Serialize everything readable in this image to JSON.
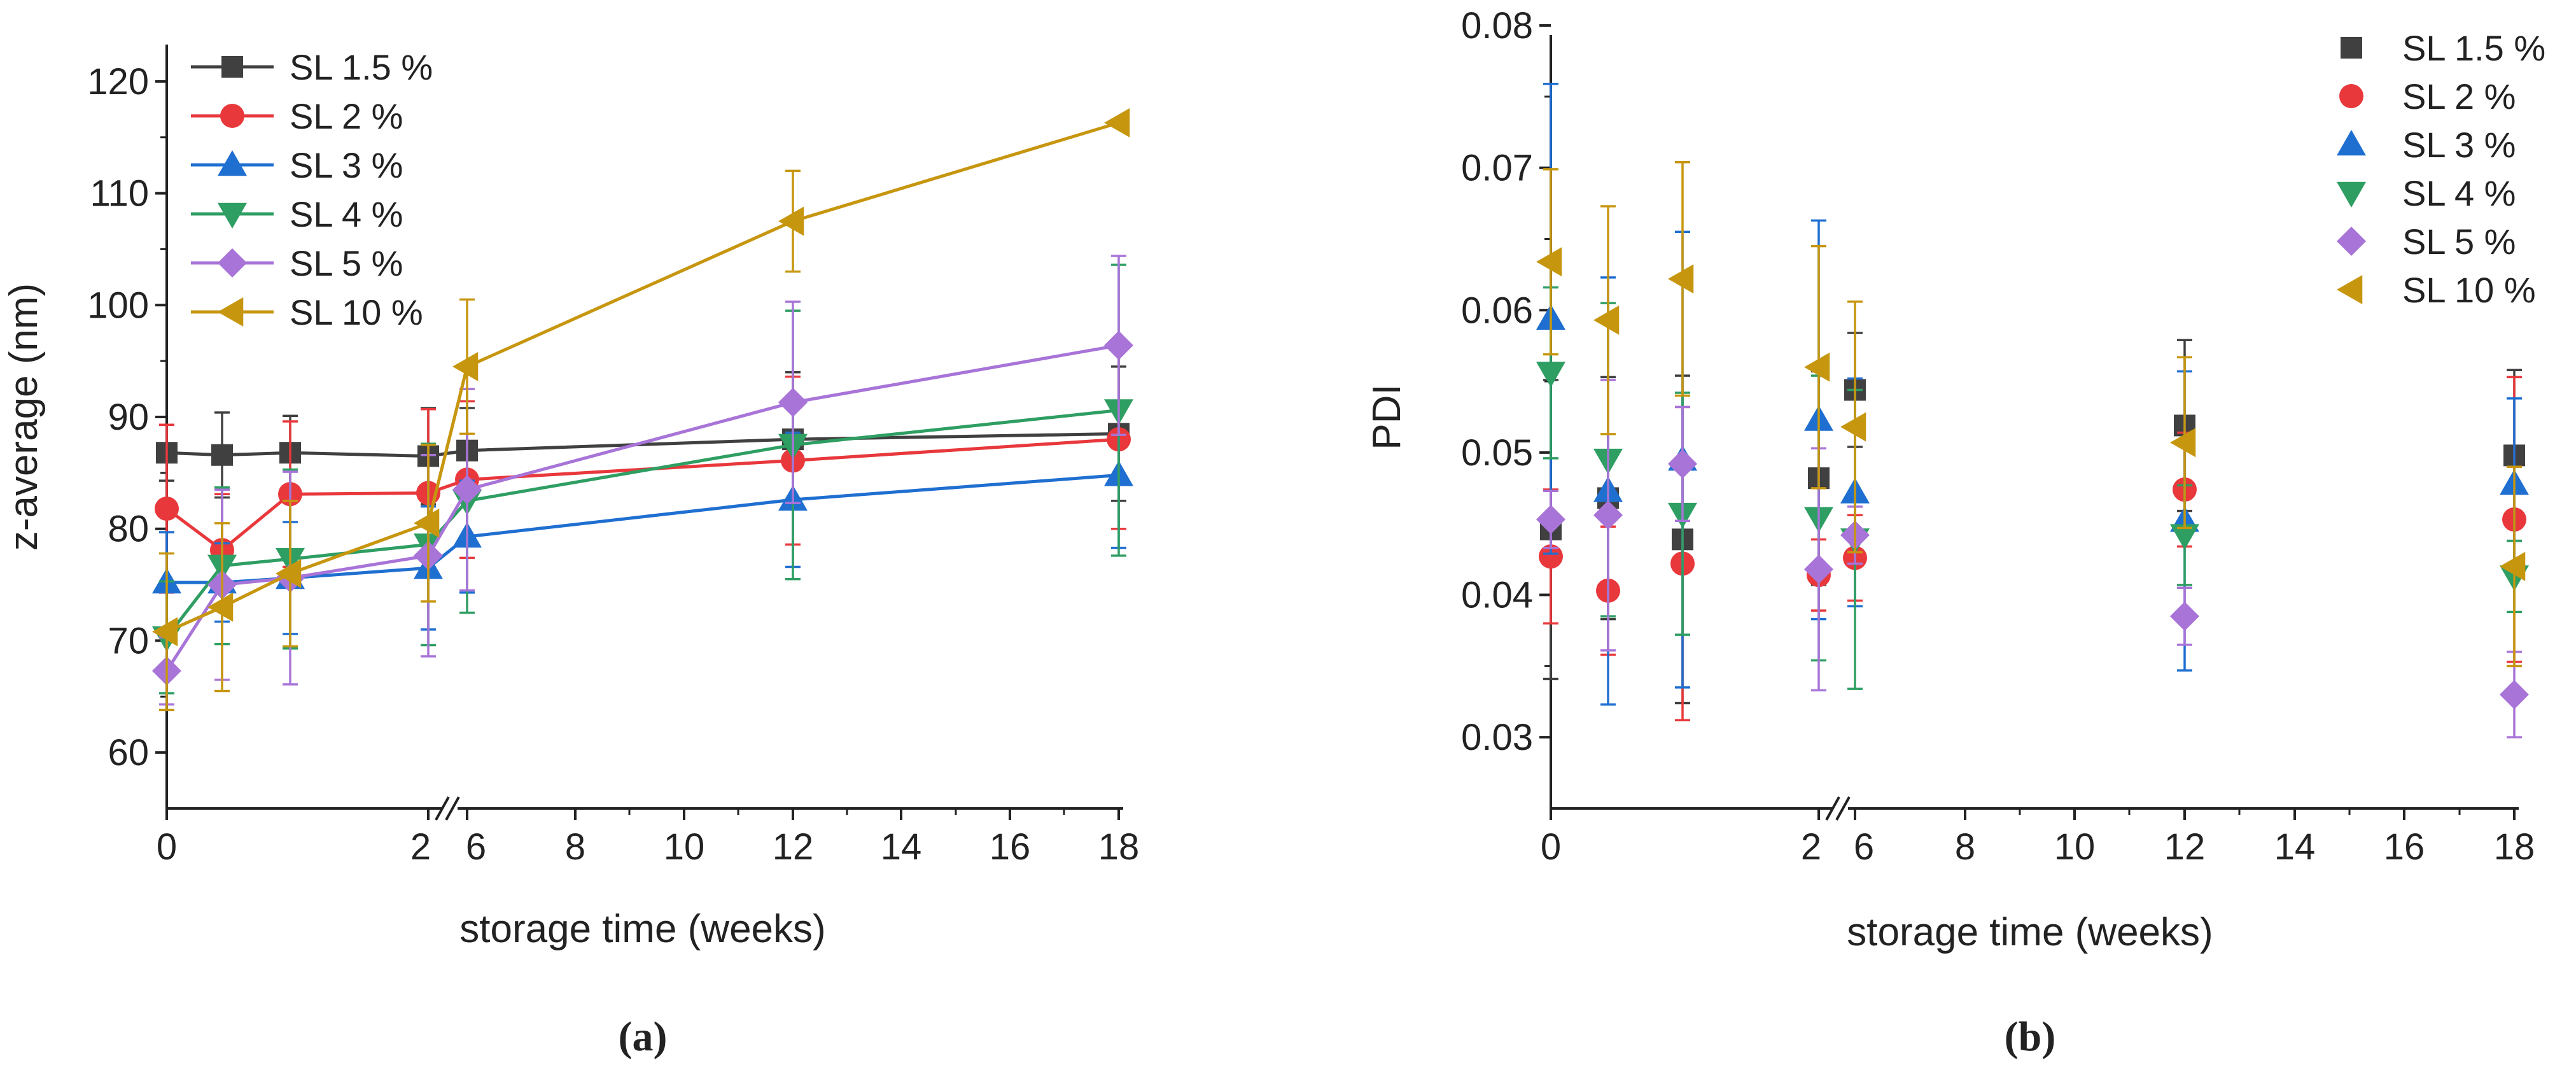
{
  "figure": {
    "colors": {
      "SL 1.5 %": "#404040",
      "SL 2 %": "#e8383c",
      "SL 3 %": "#1f6fd1",
      "SL 4 %": "#2e9e62",
      "SL 5 %": "#a874d8",
      "SL 10 %": "#c7960f"
    }
  },
  "chart_data": [
    {
      "id": "a",
      "type": "line",
      "caption": "(a)",
      "xlabel": "storage time (weeks)",
      "ylabel": "z-average (nm)",
      "ylim": [
        55,
        125
      ],
      "yticks": [
        "60",
        "70",
        "80",
        "90",
        "100",
        "110",
        "120"
      ],
      "xticks": [
        "0",
        "2",
        "6",
        "8",
        "10",
        "12",
        "14",
        "16",
        "18"
      ],
      "x_break": "2//6",
      "legend_position": "top-left",
      "x": [
        "0",
        "0.5",
        "1",
        "2",
        "6",
        "12",
        "18"
      ],
      "series": [
        {
          "name": "SL 1.5 %",
          "marker": "square",
          "values": [
            86.8,
            86.6,
            86.8,
            86.5,
            87.0,
            88.0,
            88.5
          ],
          "errors": [
            2.5,
            3.8,
            3.3,
            4.3,
            3.8,
            6.0,
            6.0
          ]
        },
        {
          "name": "SL 2 %",
          "marker": "circle",
          "values": [
            81.8,
            78.1,
            83.1,
            83.2,
            84.4,
            86.1,
            88.0
          ],
          "errors": [
            7.5,
            5.0,
            6.5,
            7.5,
            7.0,
            7.5,
            8.0
          ]
        },
        {
          "name": "SL 3 %",
          "marker": "triangle-up",
          "values": [
            75.2,
            75.2,
            75.6,
            76.5,
            79.3,
            82.6,
            84.8
          ],
          "errors": [
            4.5,
            3.5,
            5.0,
            5.5,
            5.0,
            6.0,
            6.5
          ]
        },
        {
          "name": "SL 4 %",
          "marker": "triangle-down",
          "values": [
            70.3,
            76.7,
            77.3,
            78.6,
            82.5,
            87.5,
            90.6
          ],
          "errors": [
            5.0,
            7.0,
            8.0,
            9.0,
            10.0,
            12.0,
            13.0
          ]
        },
        {
          "name": "SL 5 %",
          "marker": "diamond",
          "values": [
            67.3,
            75.0,
            75.6,
            77.6,
            83.5,
            91.3,
            96.4
          ],
          "errors": [
            3.0,
            8.5,
            9.5,
            9.0,
            9.0,
            9.0,
            8.0
          ]
        },
        {
          "name": "SL 10 %",
          "marker": "triangle-left",
          "values": [
            70.8,
            73.0,
            76.0,
            80.5,
            94.5,
            107.5,
            116.3
          ],
          "errors": [
            7.0,
            7.5,
            6.5,
            7.0,
            6.0,
            4.5,
            0
          ]
        }
      ]
    },
    {
      "id": "b",
      "type": "scatter",
      "caption": "(b)",
      "xlabel": "storage time (weeks)",
      "ylabel": "PDI",
      "ylim": [
        0.025,
        0.08
      ],
      "yticks": [
        "0.03",
        "0.04",
        "0.05",
        "0.06",
        "0.07",
        "0.08"
      ],
      "xticks": [
        "0",
        "2",
        "6",
        "8",
        "10",
        "12",
        "14",
        "16",
        "18"
      ],
      "x_break": "2//6",
      "legend_position": "top-right",
      "x": [
        "0",
        "0.5",
        "1",
        "2",
        "6",
        "12",
        "18"
      ],
      "series": [
        {
          "name": "SL 1.5 %",
          "marker": "square",
          "values": [
            0.0446,
            0.0468,
            0.0439,
            0.0482,
            0.0544,
            0.0519,
            0.0498
          ],
          "errors": [
            0.0105,
            0.0085,
            0.0115,
            0.0075,
            0.004,
            0.006,
            0.006
          ]
        },
        {
          "name": "SL 2 %",
          "marker": "circle",
          "values": [
            0.0427,
            0.0403,
            0.0422,
            0.0414,
            0.0426,
            0.0474,
            0.0453
          ],
          "errors": [
            0.0047,
            0.0045,
            0.011,
            0.0025,
            0.003,
            0.004,
            0.01
          ]
        },
        {
          "name": "SL 3 %",
          "marker": "triangle-up",
          "values": [
            0.0594,
            0.0473,
            0.0495,
            0.0523,
            0.0472,
            0.0452,
            0.0478
          ],
          "errors": [
            0.0165,
            0.015,
            0.016,
            0.014,
            0.008,
            0.0105,
            0.006
          ]
        },
        {
          "name": "SL 4 %",
          "marker": "triangle-down",
          "values": [
            0.0556,
            0.0495,
            0.0457,
            0.0454,
            0.0439,
            0.0442,
            0.0413
          ],
          "errors": [
            0.006,
            0.011,
            0.0085,
            0.01,
            0.0105,
            0.0035,
            0.0025
          ]
        },
        {
          "name": "SL 5 %",
          "marker": "diamond",
          "values": [
            0.0453,
            0.0456,
            0.0492,
            0.0418,
            0.0442,
            0.0385,
            0.033
          ],
          "errors": [
            0.002,
            0.0095,
            0.004,
            0.0085,
            0.002,
            0.002,
            0.003
          ]
        },
        {
          "name": "SL 10 %",
          "marker": "triangle-left",
          "values": [
            0.0634,
            0.0593,
            0.0622,
            0.056,
            0.0518,
            0.0507,
            0.042
          ],
          "errors": [
            0.0065,
            0.008,
            0.0082,
            0.0085,
            0.0088,
            0.006,
            0.007
          ]
        }
      ]
    }
  ]
}
